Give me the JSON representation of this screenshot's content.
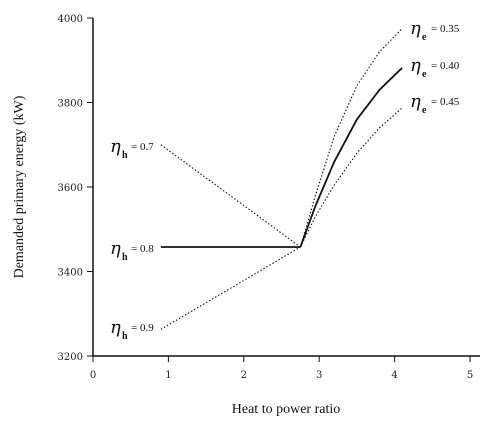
{
  "chart_data": {
    "type": "line",
    "xlabel": "Heat to power ratio",
    "ylabel": "Demanded primary energy (kW)",
    "xlim": [
      0,
      5
    ],
    "ylim": [
      3200,
      4000
    ],
    "x_ticks": [
      "0",
      "1",
      "2",
      "3",
      "4",
      "5"
    ],
    "y_ticks": [
      "3200",
      "3400",
      "3600",
      "3800",
      "4000"
    ],
    "grid": false,
    "series": [
      {
        "name": "η_h = 0.7",
        "style": "dotted",
        "points": [
          [
            0.9,
            3700
          ],
          [
            2.75,
            3458
          ]
        ]
      },
      {
        "name": "η_h = 0.8",
        "style": "solid",
        "points": [
          [
            0.9,
            3458
          ],
          [
            2.75,
            3458
          ]
        ]
      },
      {
        "name": "η_h = 0.9",
        "style": "dotted",
        "points": [
          [
            0.9,
            3263
          ],
          [
            2.75,
            3458
          ]
        ]
      },
      {
        "name": "η_e = 0.35",
        "style": "dotted",
        "points": [
          [
            2.75,
            3458
          ],
          [
            2.95,
            3580
          ],
          [
            3.2,
            3720
          ],
          [
            3.5,
            3840
          ],
          [
            3.8,
            3920
          ],
          [
            4.1,
            3975
          ]
        ]
      },
      {
        "name": "η_e = 0.40",
        "style": "solid",
        "points": [
          [
            2.75,
            3458
          ],
          [
            2.95,
            3555
          ],
          [
            3.2,
            3660
          ],
          [
            3.5,
            3760
          ],
          [
            3.8,
            3830
          ],
          [
            4.1,
            3882
          ]
        ]
      },
      {
        "name": "η_e = 0.45",
        "style": "dotted",
        "points": [
          [
            2.75,
            3458
          ],
          [
            2.95,
            3530
          ],
          [
            3.2,
            3605
          ],
          [
            3.5,
            3680
          ],
          [
            3.8,
            3740
          ],
          [
            4.1,
            3787
          ]
        ]
      }
    ],
    "annotations": [
      {
        "symbol": "η",
        "sub": "h",
        "text": "= 0.7"
      },
      {
        "symbol": "η",
        "sub": "h",
        "text": "= 0.8"
      },
      {
        "symbol": "η",
        "sub": "h",
        "text": "= 0.9"
      },
      {
        "symbol": "η",
        "sub": "e",
        "text": "= 0.35"
      },
      {
        "symbol": "η",
        "sub": "e",
        "text": "= 0.40"
      },
      {
        "symbol": "η",
        "sub": "e",
        "text": "= 0.45"
      }
    ]
  }
}
